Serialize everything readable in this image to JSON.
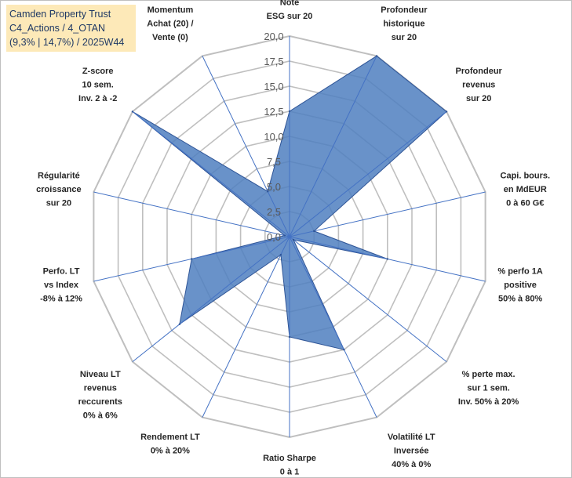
{
  "header": {
    "company": "Camden Property Trust",
    "portfolio": "C4_Actions / 4_OTAN",
    "perf": "(9,3% | 14,7%) / 2025W44"
  },
  "colors": {
    "fill": "#4f7fbf",
    "stroke": "#2f5597",
    "grid": "#bfbfbf",
    "spoke": "#4472c4",
    "header_bg": "#fde9b8"
  },
  "chart_data": {
    "type": "radar",
    "title": "Camden Property Trust",
    "rmin": 0,
    "rmax": 20,
    "ticks": [
      "0,0",
      "2,5",
      "5,0",
      "7,5",
      "10,0",
      "12,5",
      "15,0",
      "17,5",
      "20,0"
    ],
    "axes": [
      {
        "label": [
          "Note",
          "ESG sur 20"
        ],
        "value": 12.5
      },
      {
        "label": [
          "Profondeur",
          "historique",
          "sur 20"
        ],
        "value": 20
      },
      {
        "label": [
          "Profondeur",
          "revenus",
          "sur 20"
        ],
        "value": 20
      },
      {
        "label": [
          "Capi. bours.",
          "en MdEUR",
          "0 à 60 G€"
        ],
        "value": 2.5
      },
      {
        "label": [
          "% perfo 1A",
          "positive",
          "50% à 80%"
        ],
        "value": 10
      },
      {
        "label": [
          "% perte max.",
          "sur 1 sem.",
          "Inv. 50% à 20%"
        ],
        "value": 0.5
      },
      {
        "label": [
          "Volatilité LT",
          "Inversée",
          "40% à 0%"
        ],
        "value": 12.5
      },
      {
        "label": [
          "Ratio Sharpe",
          "0 à 1"
        ],
        "value": 10
      },
      {
        "label": [
          "Rendement LT",
          "0% à 20%"
        ],
        "value": 2
      },
      {
        "label": [
          "Niveau LT",
          "revenus",
          "reccurents",
          "0% à 6%"
        ],
        "value": 14
      },
      {
        "label": [
          "Perfo. LT",
          "vs Index",
          "-8% à 12%"
        ],
        "value": 10
      },
      {
        "label": [
          "Régularité",
          "croissance",
          "sur 20"
        ],
        "value": 0.5
      },
      {
        "label": [
          "Z-score",
          "10 sem.",
          "Inv. 2 à -2"
        ],
        "value": 20
      },
      {
        "label": [
          "Momentum",
          "Achat (20) /",
          "Vente (0)"
        ],
        "value": 5
      }
    ]
  }
}
